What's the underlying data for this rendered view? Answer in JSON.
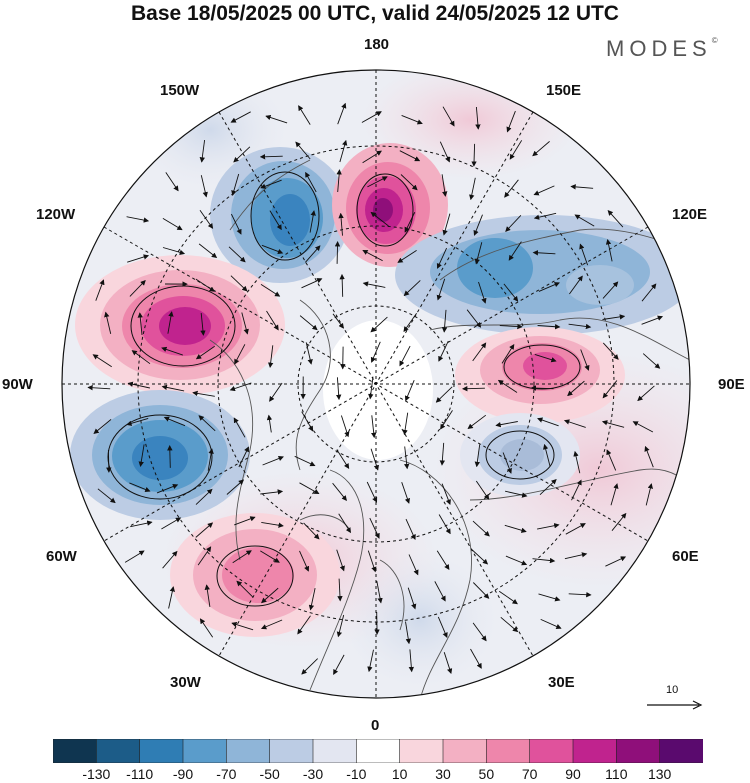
{
  "header": {
    "title": "Base 18/05/2025 00 UTC, valid 24/05/2025 12 UTC",
    "brand": "MODES",
    "brand_mark": "©"
  },
  "map": {
    "projection": "north-polar-stereographic",
    "longitude_labels": {
      "top": "180",
      "upper_left": "150W",
      "upper_right": "150E",
      "left_upper": "120W",
      "right_upper": "120E",
      "left": "90W",
      "right": "90E",
      "left_lower": "60W",
      "right_lower": "60E",
      "lower_left": "30W",
      "lower_right": "30E",
      "bottom": "0"
    },
    "reference_vector": {
      "label": "10"
    },
    "anomaly_centers": [
      {
        "sign": "negative",
        "value": -90,
        "color": "#3a84bf"
      },
      {
        "sign": "positive",
        "value": 125,
        "color": "#8a1a7e"
      },
      {
        "sign": "negative",
        "value": -70,
        "color": "#6e9cc9"
      },
      {
        "sign": "positive",
        "value": 100,
        "color": "#b21f8a"
      },
      {
        "sign": "positive",
        "value": 80,
        "color": "#d64a98"
      },
      {
        "sign": "negative",
        "value": -100,
        "color": "#3a84bf"
      },
      {
        "sign": "negative",
        "value": -45,
        "color": "#a9bcd8"
      },
      {
        "sign": "positive",
        "value": 60,
        "color": "#ee86ab"
      }
    ]
  },
  "colorbar": {
    "colors": [
      "#0f3550",
      "#1c5c88",
      "#2f7db4",
      "#5a9ccb",
      "#8fb5d8",
      "#bccce4",
      "#e3e6f1",
      "#ffffff",
      "#f9d6dd",
      "#f3b0c3",
      "#ee86ab",
      "#e0529c",
      "#c0238e",
      "#8f0f7a",
      "#5a0a6e"
    ],
    "ticks": [
      "-130",
      "-110",
      "-90",
      "-70",
      "-50",
      "-30",
      "-10",
      "10",
      "30",
      "50",
      "70",
      "90",
      "110",
      "130"
    ]
  }
}
